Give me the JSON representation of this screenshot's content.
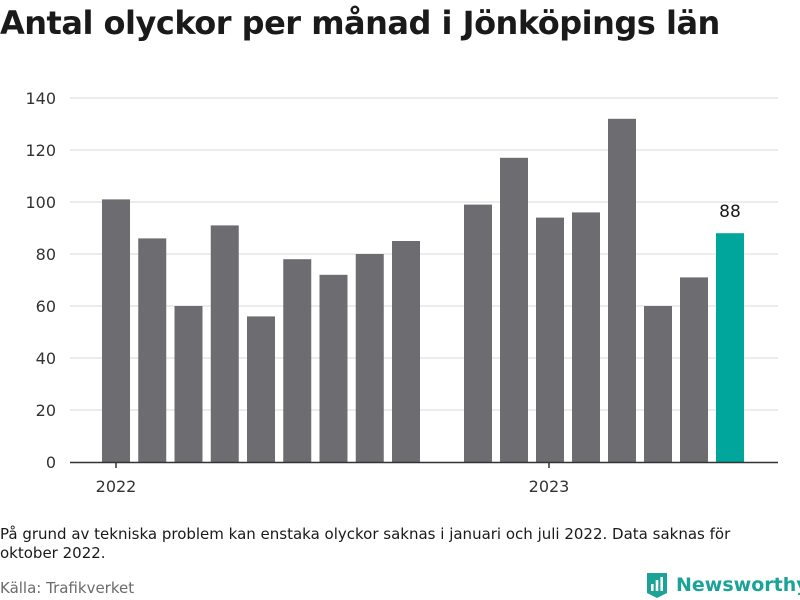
{
  "title": "Antal olyckor per månad i Jönköpings län",
  "note": "På grund av tekniska problem kan enstaka olyckor saknas i januari och juli 2022. Data saknas för oktober 2022.",
  "source": "Källa: Trafikverket",
  "logo": {
    "text": "Newsworthy",
    "icon": "bar-chart-logo-icon"
  },
  "colors": {
    "bar": "#6d6c70",
    "highlight": "#00a69c",
    "grid": "#d9d9d9",
    "axis": "#333333",
    "logo": "#1aa396"
  },
  "chart_data": {
    "type": "bar",
    "title": "Antal olyckor per månad i Jönköpings län",
    "xlabel": "",
    "ylabel": "",
    "ylim": [
      0,
      140
    ],
    "yticks": [
      0,
      20,
      40,
      60,
      80,
      100,
      120,
      140
    ],
    "xtick_labels": [
      "2022",
      "2023"
    ],
    "grid": true,
    "groups": [
      {
        "label": "2022",
        "values": [
          101,
          86,
          60,
          91,
          56,
          78,
          72,
          80,
          85
        ]
      },
      {
        "label": "2023",
        "values": [
          99,
          117,
          94,
          96,
          132,
          60,
          71,
          88
        ]
      }
    ],
    "highlight": {
      "group": 1,
      "index": 7,
      "value_label": "88"
    }
  }
}
